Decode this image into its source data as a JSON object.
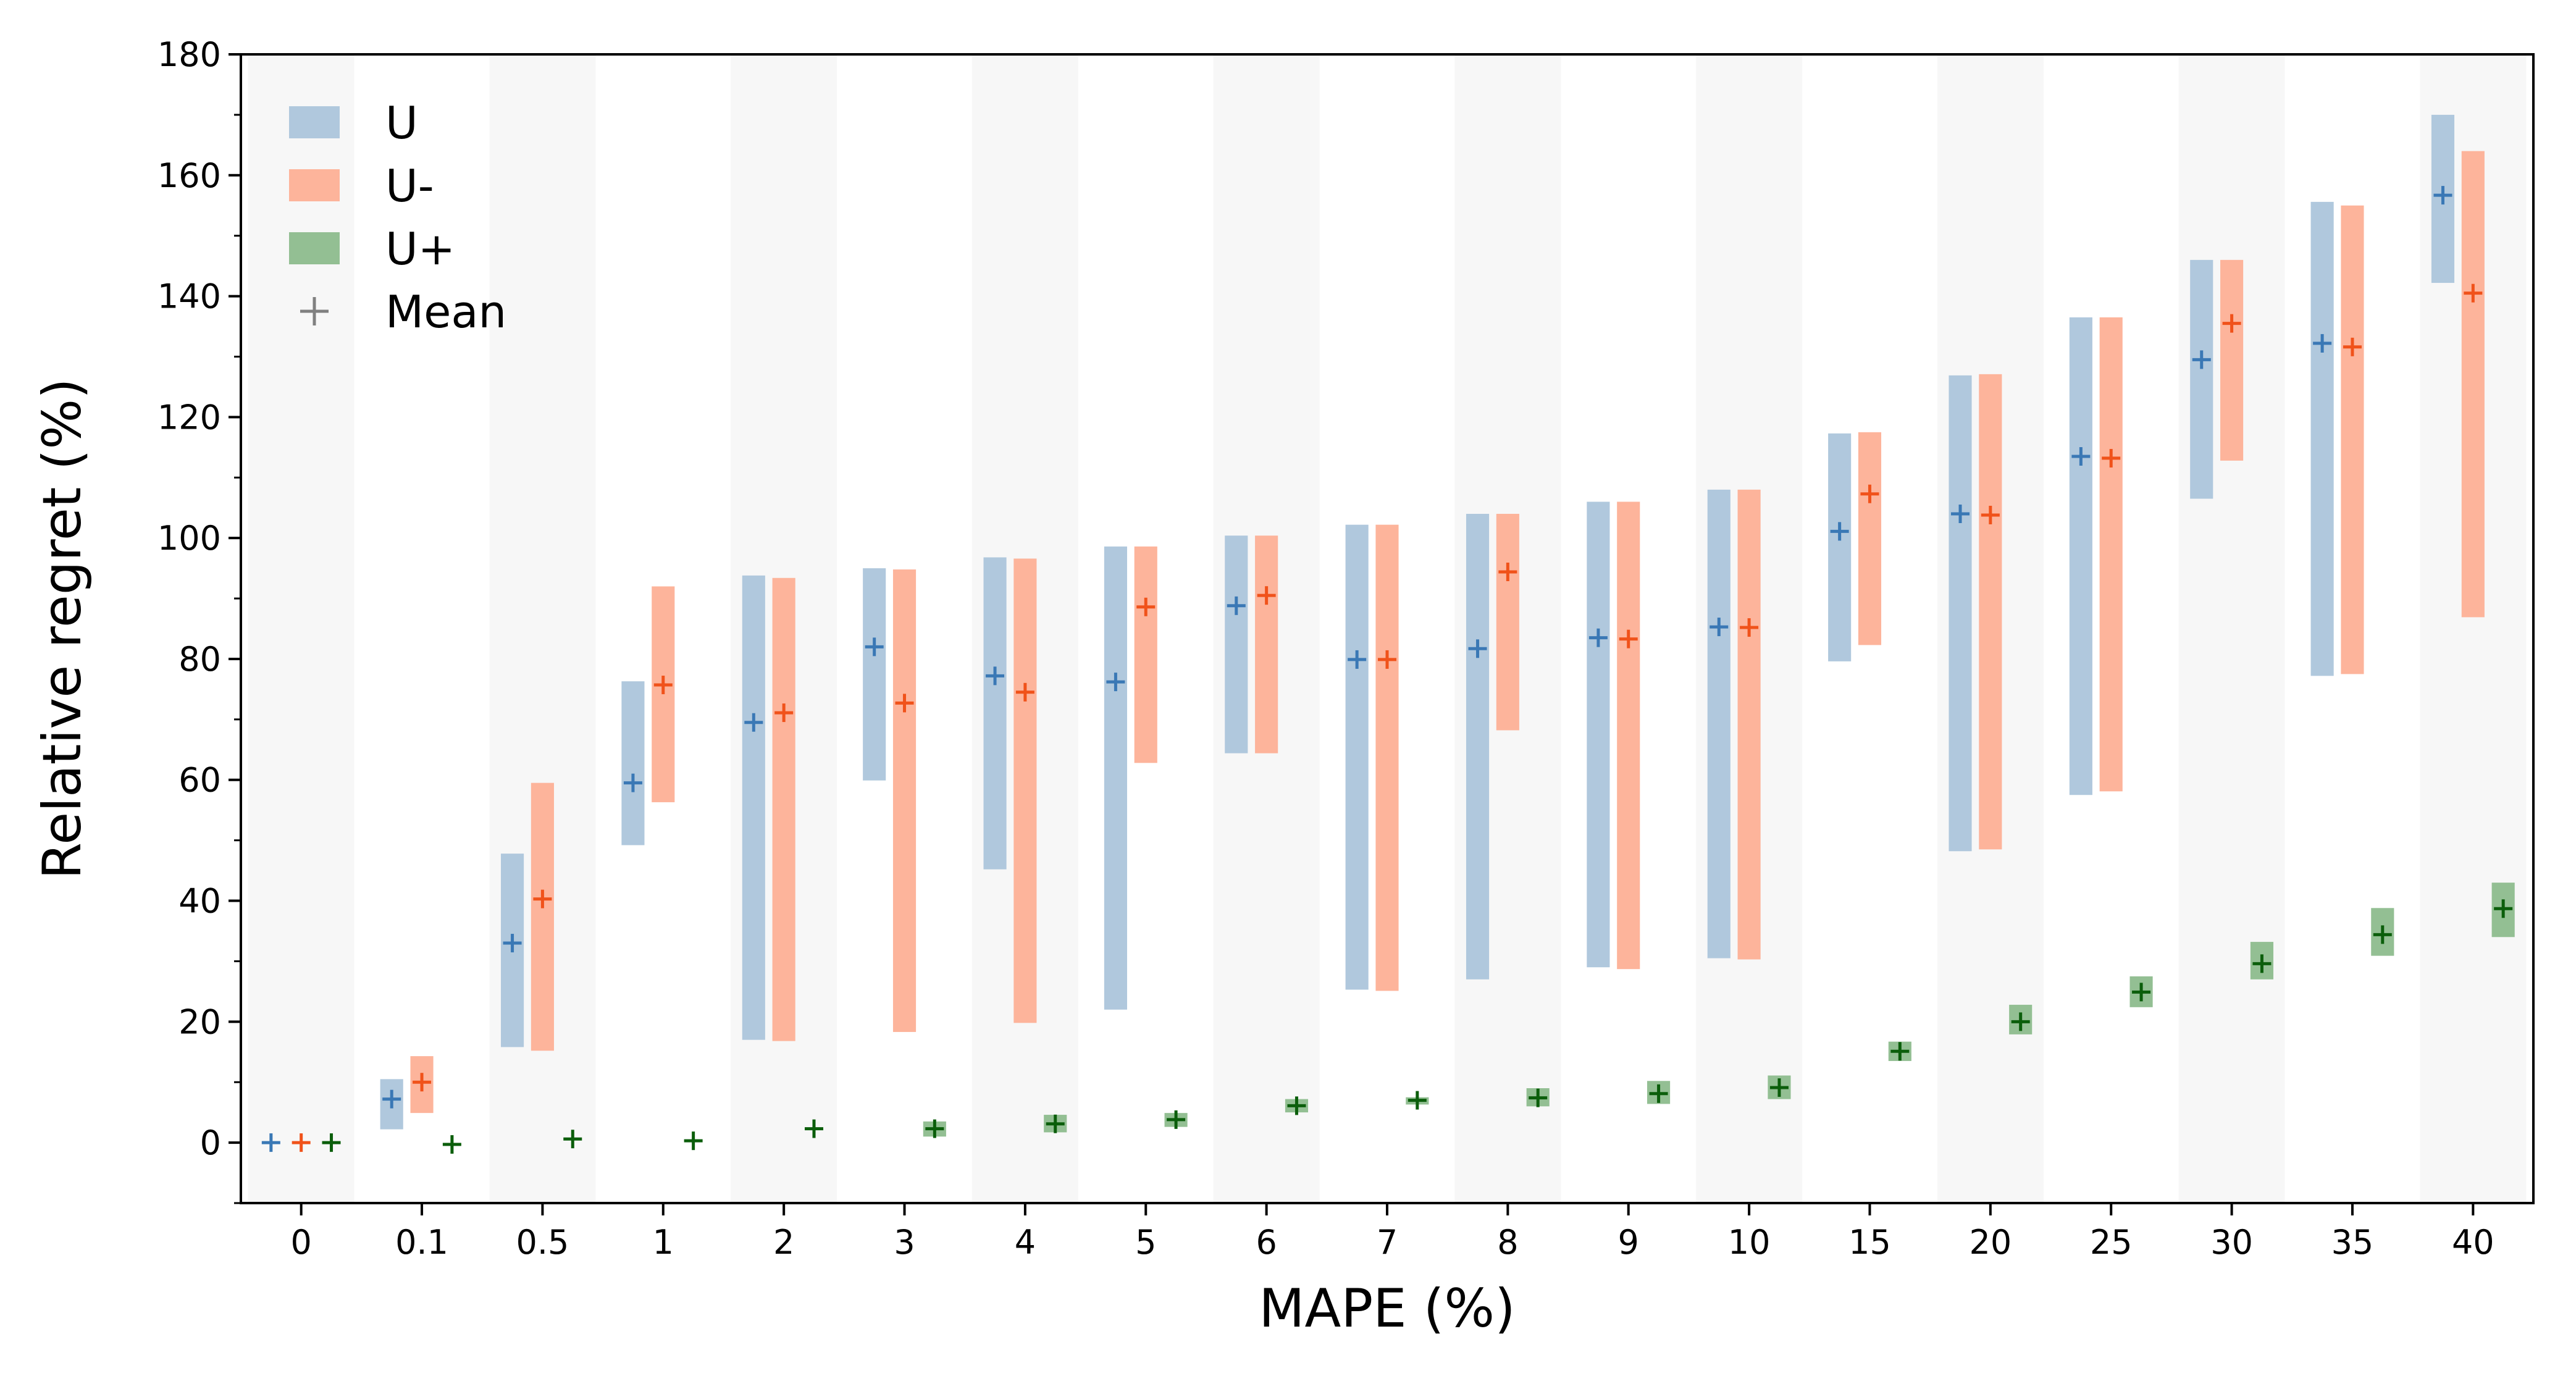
{
  "chart_data": {
    "type": "bar",
    "title": "",
    "xlabel": "MAPE (%)",
    "ylabel": "Relative regret (%)",
    "ylim": [
      -10,
      180
    ],
    "yticks": [
      0,
      20,
      40,
      60,
      80,
      100,
      120,
      140,
      160,
      180
    ],
    "categories": [
      "0",
      "0.1",
      "0.5",
      "1",
      "2",
      "3",
      "4",
      "5",
      "6",
      "7",
      "8",
      "9",
      "10",
      "15",
      "20",
      "25",
      "30",
      "35",
      "40"
    ],
    "legend_position": "top-left",
    "alternating_background_bands": true,
    "series": [
      {
        "name": "U",
        "color": "#b0c8dd",
        "mean_color": "#3a78b5",
        "low": [
          0,
          2.2,
          15.8,
          49.2,
          17.0,
          59.9,
          45.2,
          22.0,
          64.4,
          25.3,
          27.0,
          29.0,
          30.5,
          79.6,
          48.2,
          57.5,
          106.5,
          77.2,
          142.2
        ],
        "high": [
          0,
          10.5,
          47.8,
          76.3,
          93.8,
          95.0,
          96.8,
          98.6,
          100.4,
          102.2,
          104.0,
          106.0,
          108.0,
          117.3,
          126.9,
          136.5,
          146.0,
          155.6,
          170.0
        ],
        "mean": [
          0,
          7.2,
          33.0,
          59.5,
          69.5,
          82.0,
          77.2,
          76.2,
          88.8,
          79.9,
          81.7,
          83.5,
          85.3,
          101.1,
          104.0,
          113.5,
          129.5,
          132.2,
          156.7
        ]
      },
      {
        "name": "U-",
        "color": "#fdb49b",
        "mean_color": "#f0521a",
        "low": [
          0,
          4.9,
          15.2,
          56.3,
          16.8,
          18.3,
          19.8,
          62.8,
          64.4,
          25.1,
          68.2,
          28.7,
          30.3,
          82.3,
          48.5,
          58.1,
          112.8,
          77.5,
          86.9
        ],
        "high": [
          0,
          14.3,
          59.5,
          92.0,
          93.4,
          94.8,
          96.6,
          98.6,
          100.4,
          102.2,
          104.0,
          106.0,
          108.0,
          117.5,
          127.1,
          136.5,
          146.0,
          155.0,
          164.0
        ],
        "mean": [
          0,
          10.0,
          40.3,
          75.7,
          71.1,
          72.7,
          74.5,
          88.6,
          90.5,
          79.9,
          94.4,
          83.3,
          85.2,
          107.3,
          103.8,
          113.2,
          135.5,
          131.6,
          140.5
        ]
      },
      {
        "name": "U+",
        "color": "#93bf93",
        "mean_color": "#0b5e0b",
        "low": [
          0,
          -0.5,
          0.4,
          0.1,
          2.0,
          1.0,
          1.7,
          2.6,
          5.0,
          6.3,
          6.0,
          6.4,
          7.2,
          13.5,
          17.9,
          22.4,
          27.0,
          30.9,
          34.0
        ],
        "high": [
          0,
          -0.5,
          0.4,
          0.1,
          2.0,
          3.5,
          4.6,
          4.9,
          7.2,
          7.5,
          9.0,
          10.2,
          11.1,
          16.7,
          22.8,
          27.5,
          33.2,
          38.8,
          43.0
        ],
        "mean": [
          0,
          -0.3,
          0.6,
          0.3,
          2.3,
          2.3,
          3.1,
          3.8,
          6.1,
          7.0,
          7.4,
          8.1,
          9.1,
          15.1,
          20.0,
          24.9,
          29.6,
          34.4,
          38.7
        ]
      }
    ],
    "mean_legend": {
      "name": "Mean",
      "color": "#808080"
    }
  }
}
